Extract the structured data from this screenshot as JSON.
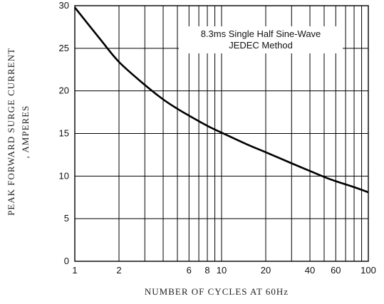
{
  "chart_data": {
    "type": "line",
    "xscale": "log",
    "xlim": [
      1,
      100
    ],
    "ylim": [
      0,
      30
    ],
    "grid": true,
    "xlabel": "NUMBER OF CYCLES AT 60Hz",
    "ylabel_lines": [
      "PEAK FORWARD SURGE CURRENT",
      ", AMPERES"
    ],
    "annotation_lines": [
      "8.3ms Single Half Sine-Wave",
      "JEDEC Method"
    ],
    "x_tick_labels": [
      {
        "value": 1,
        "label": "1"
      },
      {
        "value": 2,
        "label": "2"
      },
      {
        "value": 6,
        "label": "6"
      },
      {
        "value": 8,
        "label": "8"
      },
      {
        "value": 10,
        "label": "10"
      },
      {
        "value": 20,
        "label": "20"
      },
      {
        "value": 40,
        "label": "40"
      },
      {
        "value": 60,
        "label": "60"
      },
      {
        "value": 100,
        "label": "100"
      }
    ],
    "x_gridlines": [
      1,
      2,
      3,
      4,
      5,
      6,
      7,
      8,
      9,
      10,
      20,
      30,
      40,
      50,
      60,
      70,
      80,
      90,
      100
    ],
    "y_ticks": [
      0,
      5,
      10,
      15,
      20,
      25,
      30
    ],
    "series": [
      {
        "x": [
          1,
          1.5,
          2,
          3,
          4,
          5,
          6,
          8,
          10,
          15,
          20,
          30,
          40,
          50,
          60,
          80,
          100
        ],
        "values": [
          29.8,
          26.0,
          23.4,
          20.7,
          19.0,
          17.9,
          17.1,
          15.9,
          15.1,
          13.7,
          12.8,
          11.5,
          10.6,
          9.9,
          9.4,
          8.7,
          8.1
        ]
      }
    ]
  }
}
